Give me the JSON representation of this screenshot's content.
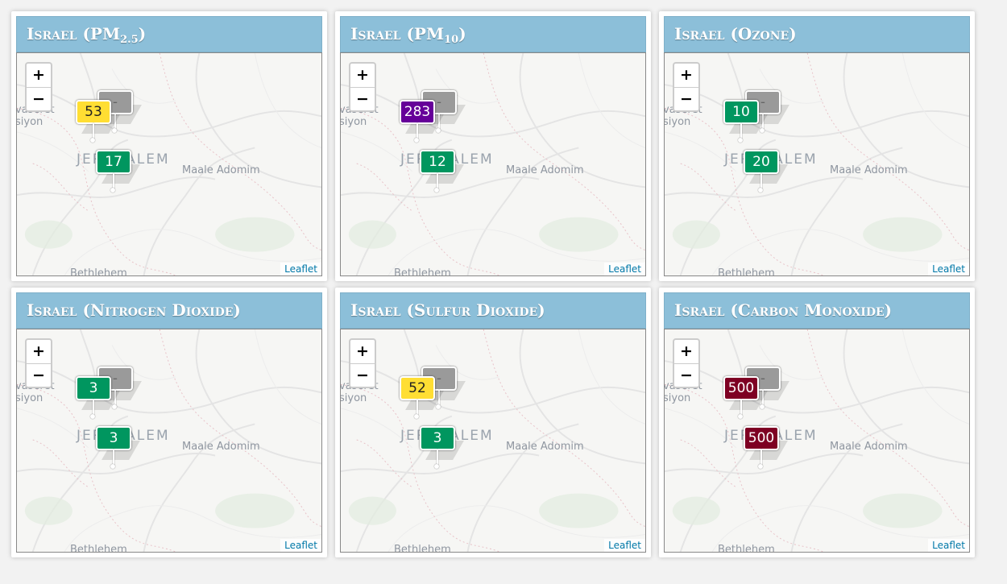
{
  "attribution": "Leaflet",
  "zoom": {
    "in_label": "+",
    "out_label": "−"
  },
  "map_labels": {
    "town_left_1": "vaseret",
    "town_left_2": "siyon",
    "city": "JERUSALEM",
    "maale": "Maale Adomim",
    "bethlehem": "Bethlehem"
  },
  "ghost_marker_label": "-",
  "colors": {
    "good": "#00965f",
    "moderate": "#ffde33",
    "very_unhealthy": "#660099",
    "hazardous": "#7e0023",
    "title_bar": "#8cbfd9"
  },
  "panels": [
    {
      "title": "Israel (PM",
      "title_sub": "2.5",
      "title_end": ")",
      "markers": [
        {
          "value": "53",
          "color": "#ffde33",
          "text_color": "#222"
        },
        {
          "value": "17",
          "color": "#00965f",
          "text_color": "#fff"
        }
      ]
    },
    {
      "title": "Israel (PM",
      "title_sub": "10",
      "title_end": ")",
      "markers": [
        {
          "value": "283",
          "color": "#660099",
          "text_color": "#fff"
        },
        {
          "value": "12",
          "color": "#00965f",
          "text_color": "#fff"
        }
      ]
    },
    {
      "title": "Israel (Ozone)",
      "title_sub": "",
      "title_end": "",
      "markers": [
        {
          "value": "10",
          "color": "#00965f",
          "text_color": "#fff"
        },
        {
          "value": "20",
          "color": "#00965f",
          "text_color": "#fff"
        }
      ]
    },
    {
      "title": "Israel (Nitrogen Dioxide)",
      "title_sub": "",
      "title_end": "",
      "markers": [
        {
          "value": "3",
          "color": "#00965f",
          "text_color": "#fff"
        },
        {
          "value": "3",
          "color": "#00965f",
          "text_color": "#fff"
        }
      ]
    },
    {
      "title": "Israel (Sulfur Dioxide)",
      "title_sub": "",
      "title_end": "",
      "markers": [
        {
          "value": "52",
          "color": "#ffde33",
          "text_color": "#222"
        },
        {
          "value": "3",
          "color": "#00965f",
          "text_color": "#fff"
        }
      ]
    },
    {
      "title": "Israel (Carbon Monoxide)",
      "title_sub": "",
      "title_end": "",
      "markers": [
        {
          "value": "500",
          "color": "#7e0023",
          "text_color": "#fff"
        },
        {
          "value": "500",
          "color": "#7e0023",
          "text_color": "#fff"
        }
      ]
    }
  ]
}
